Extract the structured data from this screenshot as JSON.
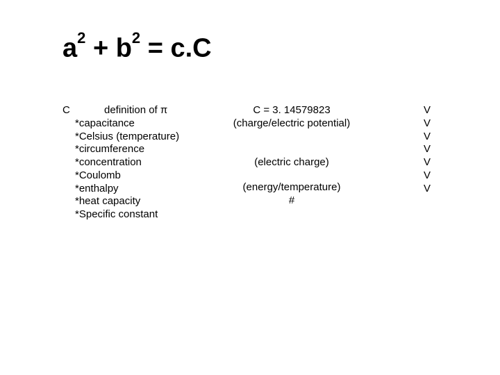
{
  "equation": {
    "a": "a",
    "sup": "2",
    "plus": " + ",
    "b": "b",
    "eq": " = ",
    "rhs": "c.C"
  },
  "left": {
    "letter": "C",
    "headerNote": "definition of π",
    "items": [
      "capacitance",
      "Celsius (temperature)",
      "circumference",
      "concentration",
      "Coulomb",
      "enthalpy",
      "heat capacity",
      "Specific constant"
    ]
  },
  "middle": {
    "constLine": "C = 3. 14579823",
    "paren1": "(charge/electric potential)",
    "paren2": "(electric charge)",
    "paren3": "(energy/temperature)",
    "hash": "#"
  },
  "right": {
    "items": [
      "V",
      "V",
      "V",
      "V",
      "V",
      "V",
      "V"
    ]
  },
  "style": {
    "background": "#ffffff",
    "textColor": "#000000",
    "equationFontSize": 38,
    "bodyFontSize": 15,
    "fontFamily": "Arial"
  }
}
